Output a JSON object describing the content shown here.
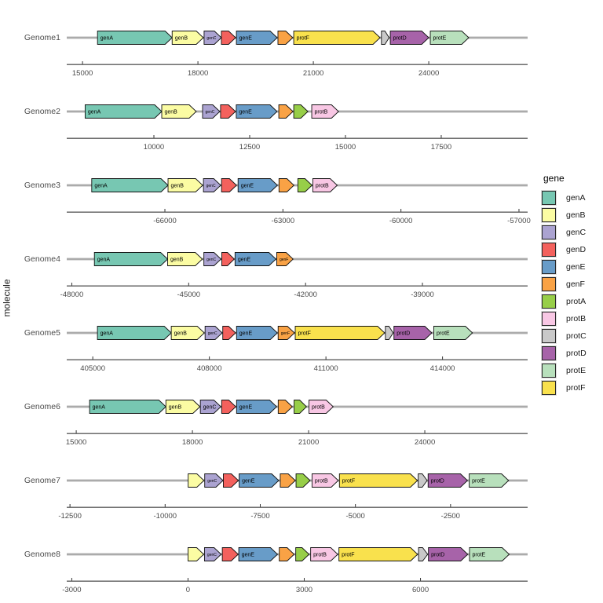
{
  "chart_data": {
    "type": "gene_arrow_map",
    "title": "",
    "xlabel": "",
    "ylabel": "molecule",
    "legend_title": "gene",
    "legend_position": "right",
    "grid": false,
    "gene_order": [
      "genA",
      "genB",
      "genC",
      "genD",
      "genE",
      "genF",
      "protA",
      "protB",
      "protC",
      "protD",
      "protE",
      "protF"
    ],
    "palette": {
      "genA": "#77C7B2",
      "genB": "#FBFCA3",
      "genC": "#ABA3D1",
      "genD": "#F3615D",
      "genE": "#689CC8",
      "genF": "#F9A245",
      "protA": "#97CE48",
      "protB": "#F8C7E4",
      "protC": "#C9C9C9",
      "protD": "#A763A9",
      "protE": "#B8E0BC",
      "protF": "#F9E14D"
    },
    "track_line_color": "#ABABAB",
    "axis_color": "#333333",
    "tick_label_color": "#4a4a4a",
    "molecules": [
      {
        "name": "Genome1",
        "axis": {
          "min": 14590,
          "max": 26570,
          "ticks": [
            15000,
            18000,
            21000,
            24000
          ]
        },
        "genes": [
          {
            "gene": "genA",
            "start": 15390,
            "end": 17330,
            "label": true
          },
          {
            "gene": "genB",
            "start": 17330,
            "end": 18140,
            "label": true
          },
          {
            "gene": "genC",
            "start": 18160,
            "end": 18610,
            "label": true
          },
          {
            "gene": "genD",
            "start": 18610,
            "end": 18980,
            "label": false
          },
          {
            "gene": "genE",
            "start": 19000,
            "end": 20060,
            "label": true
          },
          {
            "gene": "genF",
            "start": 20080,
            "end": 20465,
            "label": false
          },
          {
            "gene": "protF",
            "start": 20490,
            "end": 22735,
            "label": true
          },
          {
            "gene": "protC",
            "start": 22770,
            "end": 22970,
            "label": false
          },
          {
            "gene": "protD",
            "start": 23000,
            "end": 24000,
            "label": true
          },
          {
            "gene": "protE",
            "start": 24040,
            "end": 25040,
            "label": true
          }
        ]
      },
      {
        "name": "Genome2",
        "axis": {
          "min": 7725,
          "max": 19755,
          "ticks": [
            10000,
            12500,
            15000,
            17500
          ]
        },
        "genes": [
          {
            "gene": "genA",
            "start": 8205,
            "end": 10205,
            "label": true
          },
          {
            "gene": "genB",
            "start": 10205,
            "end": 11105,
            "label": true
          },
          {
            "gene": "genC",
            "start": 11270,
            "end": 11720,
            "label": true
          },
          {
            "gene": "genD",
            "start": 11740,
            "end": 12130,
            "label": false
          },
          {
            "gene": "genE",
            "start": 12150,
            "end": 13215,
            "label": true
          },
          {
            "gene": "genF",
            "start": 13260,
            "end": 13630,
            "label": false
          },
          {
            "gene": "protA",
            "start": 13650,
            "end": 14020,
            "label": false
          },
          {
            "gene": "protB",
            "start": 14120,
            "end": 14820,
            "label": true
          }
        ]
      },
      {
        "name": "Genome3",
        "axis": {
          "min": -68495,
          "max": -56780,
          "ticks": [
            -66000,
            -63000,
            -60000,
            -57000
          ]
        },
        "genes": [
          {
            "gene": "genA",
            "start": -67860,
            "end": -65920,
            "label": true
          },
          {
            "gene": "genB",
            "start": -65920,
            "end": -65040,
            "label": true
          },
          {
            "gene": "genC",
            "start": -65020,
            "end": -64580,
            "label": true
          },
          {
            "gene": "genD",
            "start": -64560,
            "end": -64180,
            "label": false
          },
          {
            "gene": "genE",
            "start": -64140,
            "end": -63140,
            "label": true
          },
          {
            "gene": "genF",
            "start": -63100,
            "end": -62720,
            "label": false
          },
          {
            "gene": "protA",
            "start": -62620,
            "end": -62260,
            "label": false
          },
          {
            "gene": "protB",
            "start": -62240,
            "end": -61620,
            "label": true
          }
        ]
      },
      {
        "name": "Genome4",
        "axis": {
          "min": -48130,
          "max": -36300,
          "ticks": [
            -48000,
            -45000,
            -42000,
            -39000
          ]
        },
        "genes": [
          {
            "gene": "genA",
            "start": -47420,
            "end": -45540,
            "label": true
          },
          {
            "gene": "genB",
            "start": -45540,
            "end": -44650,
            "label": true
          },
          {
            "gene": "genC",
            "start": -44610,
            "end": -44170,
            "label": true
          },
          {
            "gene": "genD",
            "start": -44150,
            "end": -43830,
            "label": false
          },
          {
            "gene": "genE",
            "start": -43810,
            "end": -42760,
            "label": true
          },
          {
            "gene": "genF",
            "start": -42740,
            "end": -42320,
            "label": true
          }
        ]
      },
      {
        "name": "Genome5",
        "axis": {
          "min": 404330,
          "max": 416190,
          "ticks": [
            405000,
            408000,
            411000,
            414000
          ]
        },
        "genes": [
          {
            "gene": "genA",
            "start": 405120,
            "end": 407020,
            "label": true
          },
          {
            "gene": "genB",
            "start": 407020,
            "end": 407870,
            "label": true
          },
          {
            "gene": "genC",
            "start": 407890,
            "end": 408330,
            "label": true
          },
          {
            "gene": "genD",
            "start": 408345,
            "end": 408675,
            "label": false
          },
          {
            "gene": "genE",
            "start": 408700,
            "end": 409750,
            "label": true
          },
          {
            "gene": "genF",
            "start": 409770,
            "end": 410190,
            "label": true
          },
          {
            "gene": "protF",
            "start": 410210,
            "end": 412510,
            "label": true
          },
          {
            "gene": "protC",
            "start": 412530,
            "end": 412730,
            "label": false
          },
          {
            "gene": "protD",
            "start": 412750,
            "end": 413725,
            "label": true
          },
          {
            "gene": "protE",
            "start": 413775,
            "end": 414770,
            "label": true
          }
        ]
      },
      {
        "name": "Genome6",
        "axis": {
          "min": 14755,
          "max": 26655,
          "ticks": [
            15000,
            18000,
            21000,
            24000
          ]
        },
        "genes": [
          {
            "gene": "genA",
            "start": 15345,
            "end": 17315,
            "label": true
          },
          {
            "gene": "genB",
            "start": 17315,
            "end": 18195,
            "label": true
          },
          {
            "gene": "genC",
            "start": 18205,
            "end": 18735,
            "label": true
          },
          {
            "gene": "genD",
            "start": 18755,
            "end": 19120,
            "label": false
          },
          {
            "gene": "genE",
            "start": 19140,
            "end": 20175,
            "label": true
          },
          {
            "gene": "genF",
            "start": 20215,
            "end": 20580,
            "label": false
          },
          {
            "gene": "protA",
            "start": 20625,
            "end": 20945,
            "label": false
          },
          {
            "gene": "protB",
            "start": 21010,
            "end": 21635,
            "label": true
          }
        ]
      },
      {
        "name": "Genome7",
        "axis": {
          "min": -12585,
          "max": -475,
          "ticks": [
            -12500,
            -10000,
            -7500,
            -5000,
            -2500
          ]
        },
        "genes": [
          {
            "gene": "genB",
            "start": -9395,
            "end": -8980,
            "label": false
          },
          {
            "gene": "genC",
            "start": -8960,
            "end": -8480,
            "label": true
          },
          {
            "gene": "genD",
            "start": -8470,
            "end": -8075,
            "label": false
          },
          {
            "gene": "genE",
            "start": -8055,
            "end": -7015,
            "label": true
          },
          {
            "gene": "genF",
            "start": -6975,
            "end": -6580,
            "label": false
          },
          {
            "gene": "protA",
            "start": -6560,
            "end": -6190,
            "label": false
          },
          {
            "gene": "protB",
            "start": -6140,
            "end": -5450,
            "label": true
          },
          {
            "gene": "protF",
            "start": -5420,
            "end": -3370,
            "label": true
          },
          {
            "gene": "protC",
            "start": -3350,
            "end": -3115,
            "label": false
          },
          {
            "gene": "protD",
            "start": -3090,
            "end": -2055,
            "label": true
          },
          {
            "gene": "protE",
            "start": -2010,
            "end": -975,
            "label": true
          }
        ]
      },
      {
        "name": "Genome8",
        "axis": {
          "min": -3130,
          "max": 8765,
          "ticks": [
            -3000,
            0,
            3000,
            6000
          ]
        },
        "genes": [
          {
            "gene": "genB",
            "start": 0,
            "end": 405,
            "label": false
          },
          {
            "gene": "genC",
            "start": 425,
            "end": 855,
            "label": true
          },
          {
            "gene": "genD",
            "start": 885,
            "end": 1295,
            "label": false
          },
          {
            "gene": "genE",
            "start": 1310,
            "end": 2310,
            "label": true
          },
          {
            "gene": "genF",
            "start": 2355,
            "end": 2740,
            "label": false
          },
          {
            "gene": "protA",
            "start": 2780,
            "end": 3125,
            "label": false
          },
          {
            "gene": "protB",
            "start": 3165,
            "end": 3865,
            "label": true
          },
          {
            "gene": "protF",
            "start": 3895,
            "end": 5925,
            "label": true
          },
          {
            "gene": "protC",
            "start": 5950,
            "end": 6185,
            "label": false
          },
          {
            "gene": "protD",
            "start": 6205,
            "end": 7220,
            "label": true
          },
          {
            "gene": "protE",
            "start": 7265,
            "end": 8290,
            "label": true
          }
        ]
      }
    ]
  }
}
